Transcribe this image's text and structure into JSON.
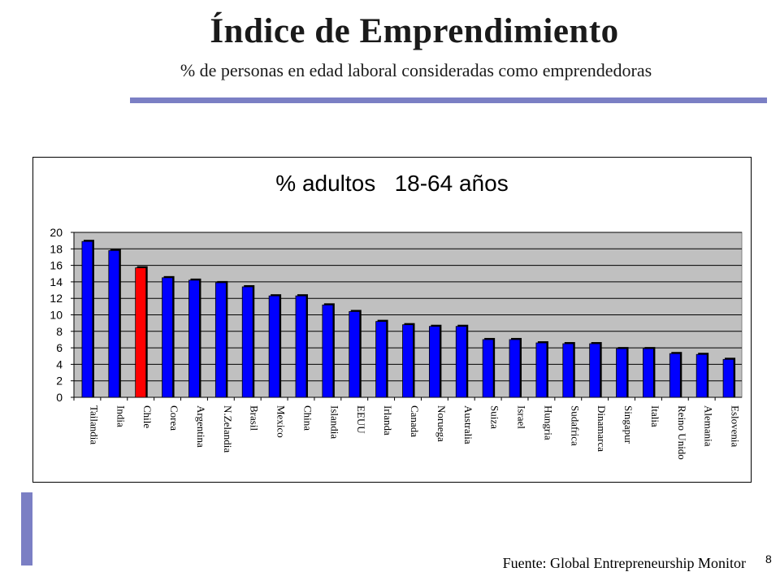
{
  "slide": {
    "title": "Índice de Emprendimiento",
    "subtitle": "% de personas en edad laboral consideradas como emprendedoras",
    "source": "Fuente: Global Entrepreneurship Monitor",
    "page_number": "8",
    "accent_color": "#7b7fc4"
  },
  "chart_data": {
    "type": "bar",
    "title": "% adultos   18-64 años",
    "xlabel": "",
    "ylabel": "",
    "ylim": [
      0,
      20
    ],
    "yticks": [
      0,
      2,
      4,
      6,
      8,
      10,
      12,
      14,
      16,
      18,
      20
    ],
    "grid": true,
    "plot_background": "#c0c0c0",
    "bar_color": "#0000ff",
    "highlight_color": "#ff0000",
    "highlight_category": "Chile",
    "categories": [
      "Tailandia",
      "India",
      "Chile",
      "Corea",
      "Argentina",
      "N.Zelandia",
      "Brasil",
      "Mexico",
      "China",
      "Islandia",
      "EEUU",
      "Irlanda",
      "Canada",
      "Noruega",
      "Australia",
      "Suiza",
      "Israel",
      "Hungria",
      "Sudafrica",
      "Dinamarca",
      "Singapur",
      "Italia",
      "Reino Unido",
      "Alemania",
      "Eslovenia"
    ],
    "values": [
      18.9,
      17.8,
      15.7,
      14.5,
      14.2,
      13.9,
      13.4,
      12.3,
      12.3,
      11.2,
      10.4,
      9.2,
      8.8,
      8.6,
      8.6,
      7.0,
      7.0,
      6.6,
      6.5,
      6.5,
      5.9,
      5.9,
      5.3,
      5.2,
      4.6
    ]
  }
}
